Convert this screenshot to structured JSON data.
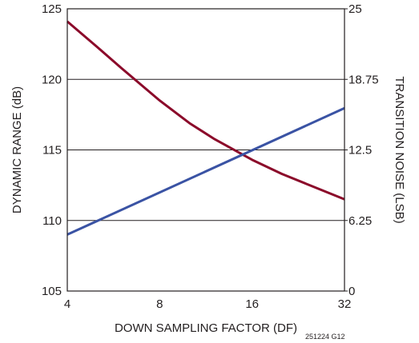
{
  "chart_data": {
    "type": "line",
    "xlabel": "DOWN SAMPLING FACTOR (DF)",
    "ylabel": "DYNAMIC RANGE (dB)",
    "y2label": "TRANSITION NOISE (LSB)",
    "x_scale": "log2",
    "xlim": [
      4,
      32
    ],
    "ylim": [
      105,
      125
    ],
    "y2lim": [
      0,
      25
    ],
    "x_ticks": [
      "4",
      "8",
      "16",
      "32"
    ],
    "y_ticks": [
      "105",
      "110",
      "115",
      "120",
      "125"
    ],
    "y2_ticks": [
      "0",
      "6.25",
      "12.5",
      "18.75",
      "25"
    ],
    "grid": "horizontal",
    "series": [
      {
        "axis": "left",
        "color": "#8b0a2a",
        "x": [
          4,
          5,
          6,
          8,
          10,
          12,
          16,
          20,
          24,
          32
        ],
        "y": [
          124.1,
          122.3,
          120.8,
          118.5,
          116.9,
          115.8,
          114.3,
          113.3,
          112.6,
          111.5
        ]
      },
      {
        "axis": "right",
        "color": "#3a53a4",
        "x": [
          4,
          32
        ],
        "y": [
          5,
          16.2
        ]
      }
    ],
    "note": "251224 G12"
  }
}
